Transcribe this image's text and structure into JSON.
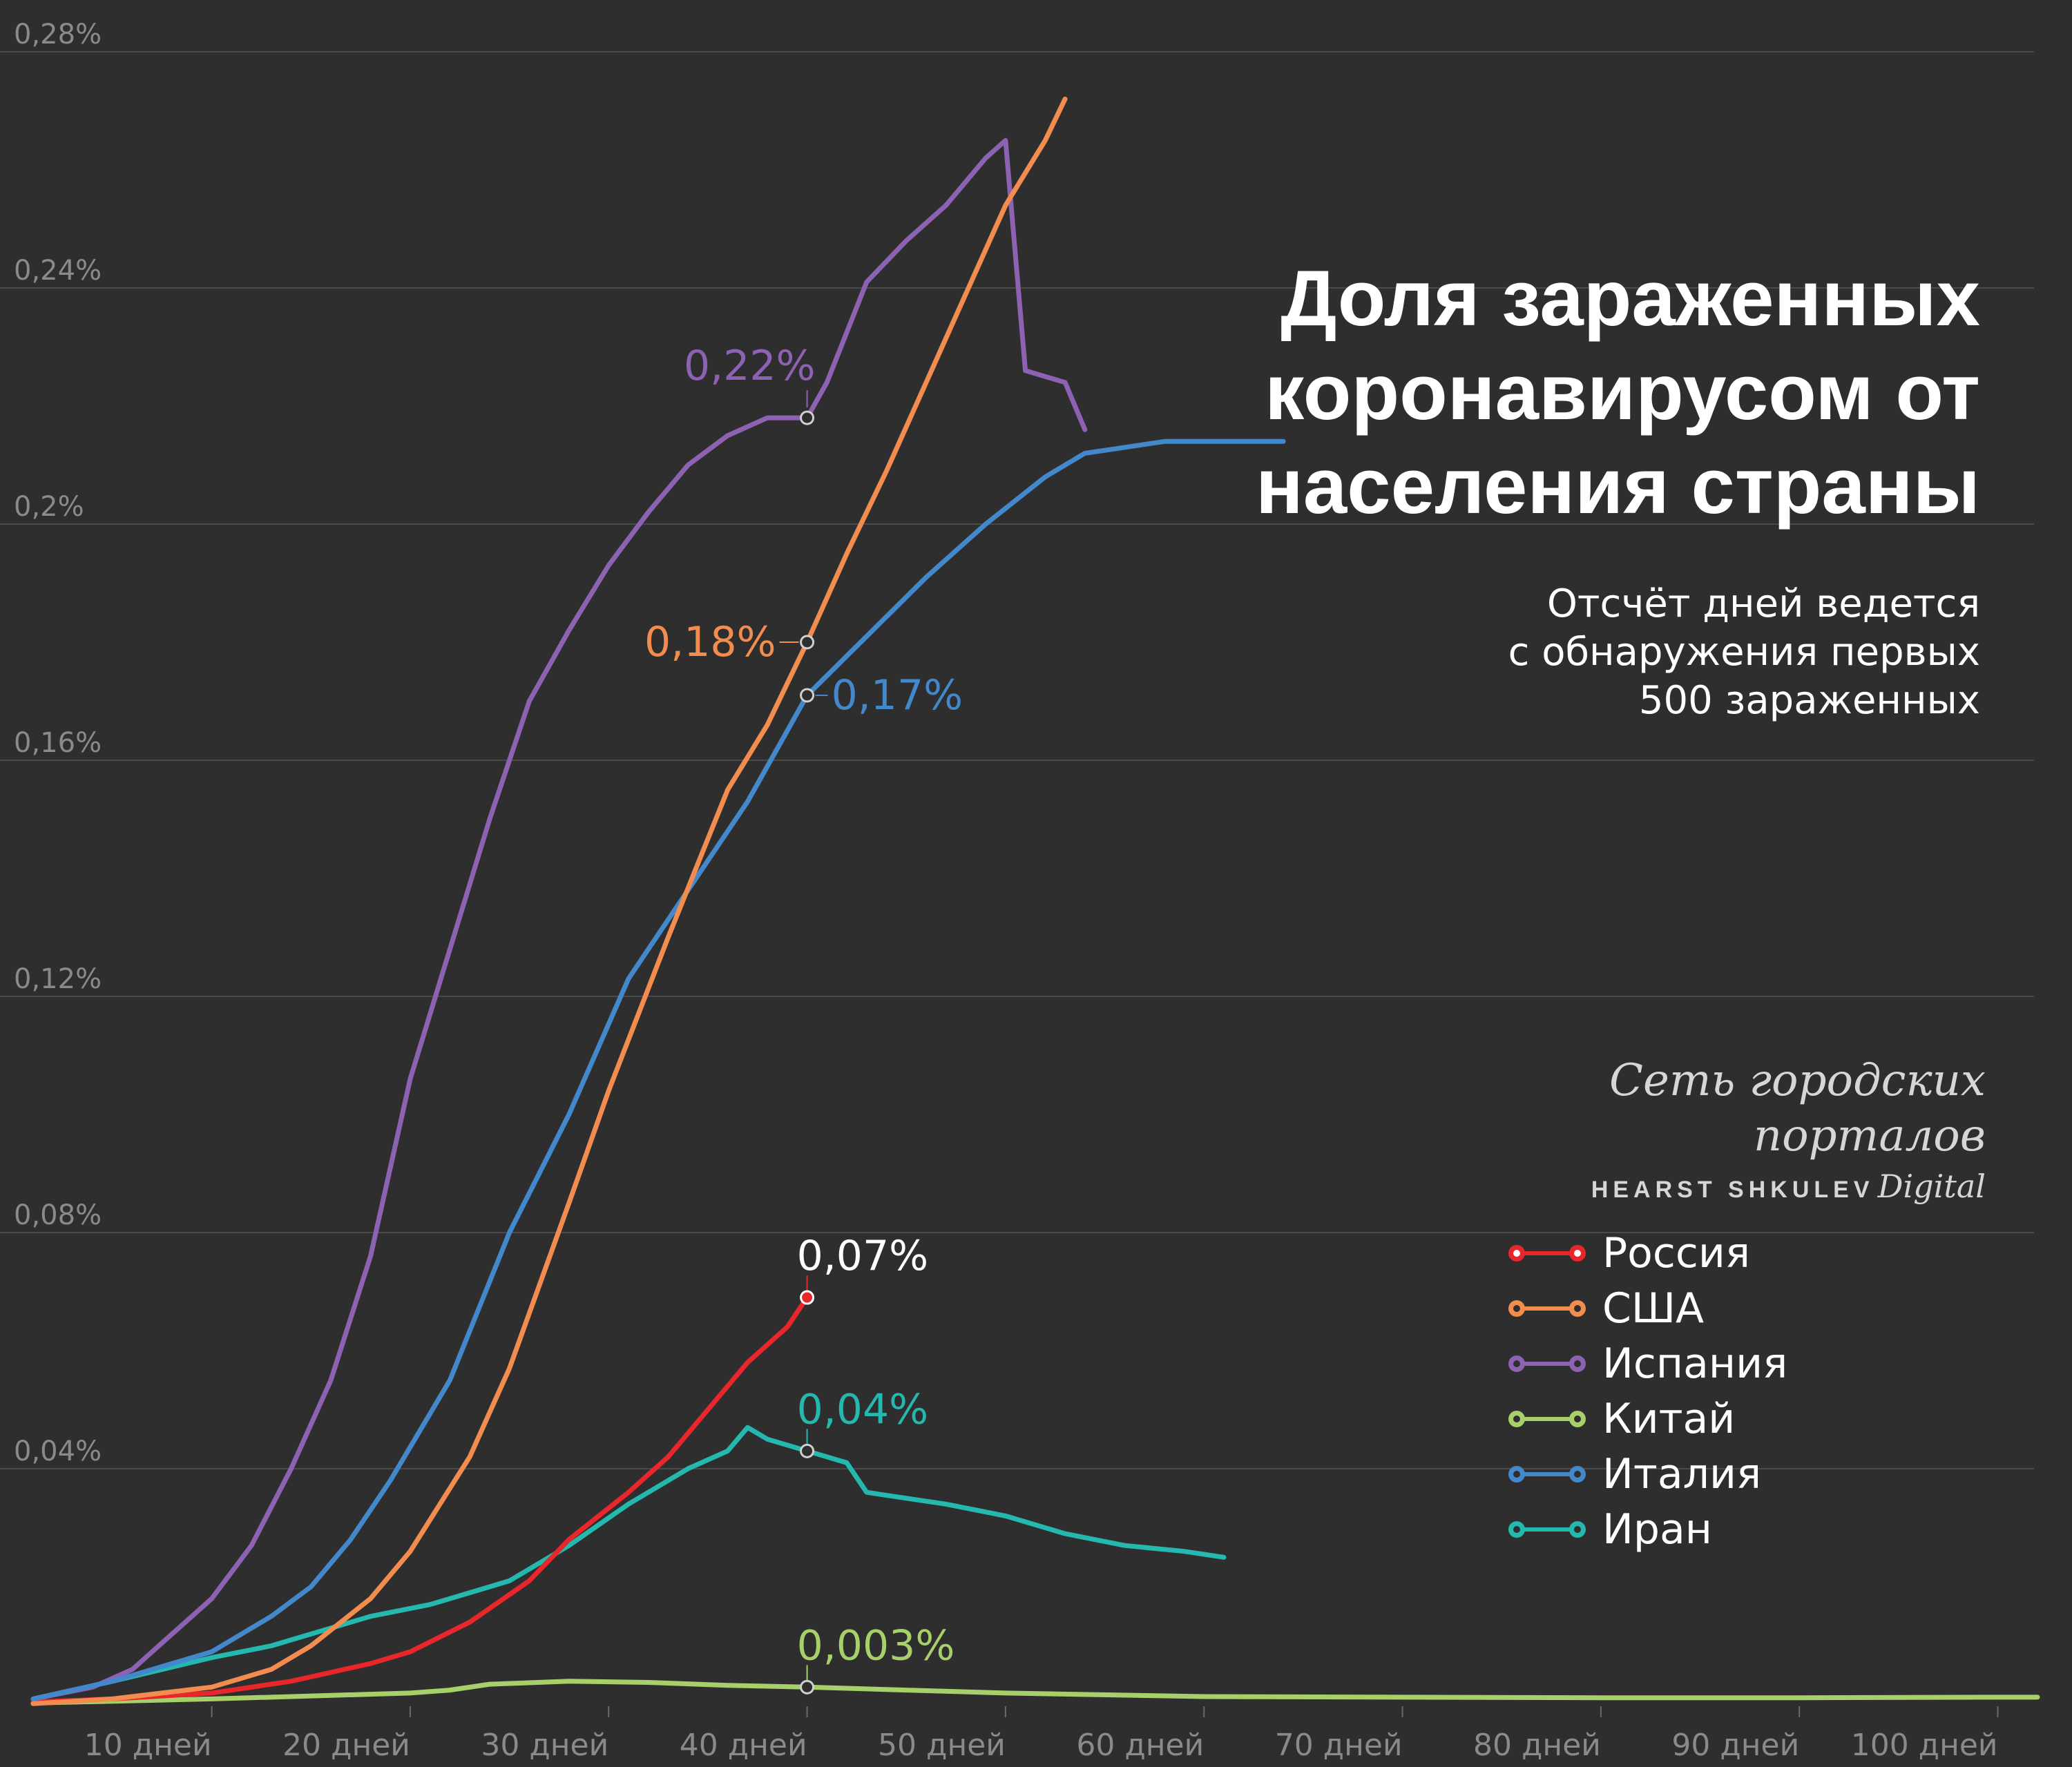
{
  "title": "Доля зараженных\nкоронавирусом от\nнаселения страны",
  "subtitle": "Отсчёт дней ведется\nс обнаружения первых\n500 зараженных",
  "logo": {
    "line1": "Сеть городских порталов",
    "brand": "HEARST SHKULEV",
    "brand_suffix": "Digital"
  },
  "chart_data": {
    "type": "line",
    "title": "Доля зараженных коронавирусом от населения страны",
    "subtitle": "Отсчёт дней ведется с обнаружения первых 500 зараженных",
    "xlim": [
      1,
      102
    ],
    "ylim": [
      0,
      0.28
    ],
    "y_unit": "%",
    "y_ticks": [
      {
        "value": 0.04,
        "label": "0,04%"
      },
      {
        "value": 0.08,
        "label": "0,08%"
      },
      {
        "value": 0.12,
        "label": "0,12%"
      },
      {
        "value": 0.16,
        "label": "0,16%"
      },
      {
        "value": 0.2,
        "label": "0,2%"
      },
      {
        "value": 0.24,
        "label": "0,24%"
      },
      {
        "value": 0.28,
        "label": "0,28%"
      }
    ],
    "x_ticks": [
      {
        "value": 10,
        "label": "10 дней"
      },
      {
        "value": 20,
        "label": "20 дней"
      },
      {
        "value": 30,
        "label": "30 дней"
      },
      {
        "value": 40,
        "label": "40 дней"
      },
      {
        "value": 50,
        "label": "50 дней"
      },
      {
        "value": 60,
        "label": "60 дней"
      },
      {
        "value": 70,
        "label": "70 дней"
      },
      {
        "value": 80,
        "label": "80 дней"
      },
      {
        "value": 90,
        "label": "90 дней"
      },
      {
        "value": 100,
        "label": "100 дней"
      }
    ],
    "grid": true,
    "legend_position": "bottom-right",
    "series": [
      {
        "name": "Россия",
        "color": "#e8262c",
        "legend_dot": "#ffffff",
        "x": [
          1,
          5,
          10,
          14,
          18,
          20,
          23,
          26,
          28,
          31,
          33,
          35,
          37,
          39,
          40
        ],
        "y": [
          0.0005,
          0.001,
          0.002,
          0.004,
          0.007,
          0.009,
          0.014,
          0.021,
          0.028,
          0.036,
          0.042,
          0.05,
          0.058,
          0.064,
          0.069
        ],
        "end_label": "0,07%",
        "label_color": "#ffffff"
      },
      {
        "name": "США",
        "color": "#f28d4f",
        "legend_dot": "#f28d4f",
        "x": [
          1,
          5,
          10,
          13,
          15,
          18,
          20,
          23,
          25,
          28,
          30,
          33,
          36,
          38,
          40,
          42,
          44,
          46,
          48,
          50,
          52,
          53
        ],
        "y": [
          0.0002,
          0.001,
          0.003,
          0.006,
          0.01,
          0.018,
          0.026,
          0.042,
          0.057,
          0.085,
          0.104,
          0.13,
          0.155,
          0.166,
          0.18,
          0.195,
          0.209,
          0.224,
          0.239,
          0.254,
          0.265,
          0.272
        ],
        "end_label": "0,18%",
        "label_color": "#f28d4f",
        "label_at_x": 40
      },
      {
        "name": "Испания",
        "color": "#8e62b2",
        "legend_dot": "#8e62b2",
        "x": [
          1,
          4,
          6,
          8,
          10,
          12,
          14,
          16,
          18,
          20,
          22,
          24,
          26,
          28,
          30,
          32,
          34,
          36,
          38,
          40,
          41,
          43,
          45,
          47,
          49,
          50,
          51,
          52,
          53,
          54
        ],
        "y": [
          0.001,
          0.003,
          0.006,
          0.012,
          0.018,
          0.027,
          0.04,
          0.055,
          0.076,
          0.106,
          0.128,
          0.15,
          0.17,
          0.182,
          0.193,
          0.202,
          0.21,
          0.215,
          0.218,
          0.218,
          0.224,
          0.241,
          0.248,
          0.254,
          0.262,
          0.265,
          0.226,
          0.225,
          0.224,
          0.216
        ],
        "end_label": "0,22%",
        "label_color": "#8e62b2",
        "label_at_x": 40
      },
      {
        "name": "Китай",
        "color": "#a7d06a",
        "legend_dot": "#a7d06a",
        "x": [
          1,
          10,
          20,
          22,
          24,
          28,
          32,
          36,
          40,
          45,
          50,
          60,
          70,
          80,
          90,
          100,
          102
        ],
        "y": [
          0.0003,
          0.001,
          0.002,
          0.0025,
          0.0035,
          0.004,
          0.0038,
          0.0033,
          0.003,
          0.0025,
          0.002,
          0.0014,
          0.0013,
          0.0012,
          0.0012,
          0.0013,
          0.0013
        ],
        "end_label": "0,003%",
        "label_color": "#a7d06a",
        "label_at_x": 40
      },
      {
        "name": "Италия",
        "color": "#4488cc",
        "legend_dot": "#4488cc",
        "x": [
          1,
          5,
          10,
          13,
          15,
          17,
          19,
          22,
          25,
          28,
          31,
          34,
          37,
          40,
          43,
          46,
          49,
          52,
          54,
          56,
          58,
          60,
          62,
          64
        ],
        "y": [
          0.001,
          0.004,
          0.009,
          0.015,
          0.02,
          0.028,
          0.038,
          0.055,
          0.08,
          0.1,
          0.123,
          0.138,
          0.153,
          0.171,
          0.181,
          0.191,
          0.2,
          0.208,
          0.212,
          0.213,
          0.214,
          0.214,
          0.214,
          0.214
        ],
        "end_label": "0,17%",
        "label_color": "#4488cc",
        "label_at_x": 40
      },
      {
        "name": "Иран",
        "color": "#24b8ae",
        "legend_dot": "#24b8ae",
        "x": [
          1,
          5,
          10,
          13,
          15,
          18,
          21,
          23,
          25,
          28,
          31,
          34,
          36,
          37,
          38,
          40,
          42,
          43,
          45,
          47,
          50,
          53,
          56,
          59,
          61
        ],
        "y": [
          0.001,
          0.004,
          0.008,
          0.01,
          0.012,
          0.015,
          0.017,
          0.019,
          0.021,
          0.027,
          0.034,
          0.04,
          0.043,
          0.047,
          0.045,
          0.043,
          0.041,
          0.036,
          0.035,
          0.034,
          0.032,
          0.029,
          0.027,
          0.026,
          0.025
        ],
        "end_label": "0,04%",
        "label_color": "#24b8ae",
        "label_at_x": 40
      }
    ]
  }
}
